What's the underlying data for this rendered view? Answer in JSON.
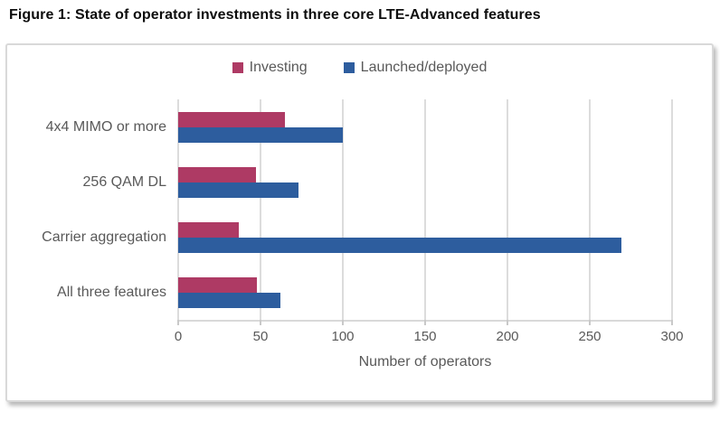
{
  "figure": {
    "title": "Figure 1: State of operator investments in three core LTE-Advanced features"
  },
  "chart_data": {
    "type": "bar",
    "orientation": "horizontal",
    "title": "Figure 1: State of operator investments in three core LTE-Advanced features",
    "categories": [
      "4x4 MIMO or more",
      "256 QAM DL",
      "Carrier aggregation",
      "All three features"
    ],
    "series": [
      {
        "name": "Investing",
        "color": "#AE3A64",
        "values": [
          65,
          47,
          37,
          48
        ]
      },
      {
        "name": "Launched/deployed",
        "color": "#2D5D9E",
        "values": [
          100,
          73,
          269,
          62
        ]
      }
    ],
    "xlabel": "Number of operators",
    "ylabel": "",
    "xlim": [
      0,
      300
    ],
    "xticks": [
      0,
      50,
      100,
      150,
      200,
      250,
      300
    ],
    "grid": true,
    "gridline_color": "#dcdcdc",
    "legend_position": "top-center",
    "text_color": "#595959"
  }
}
